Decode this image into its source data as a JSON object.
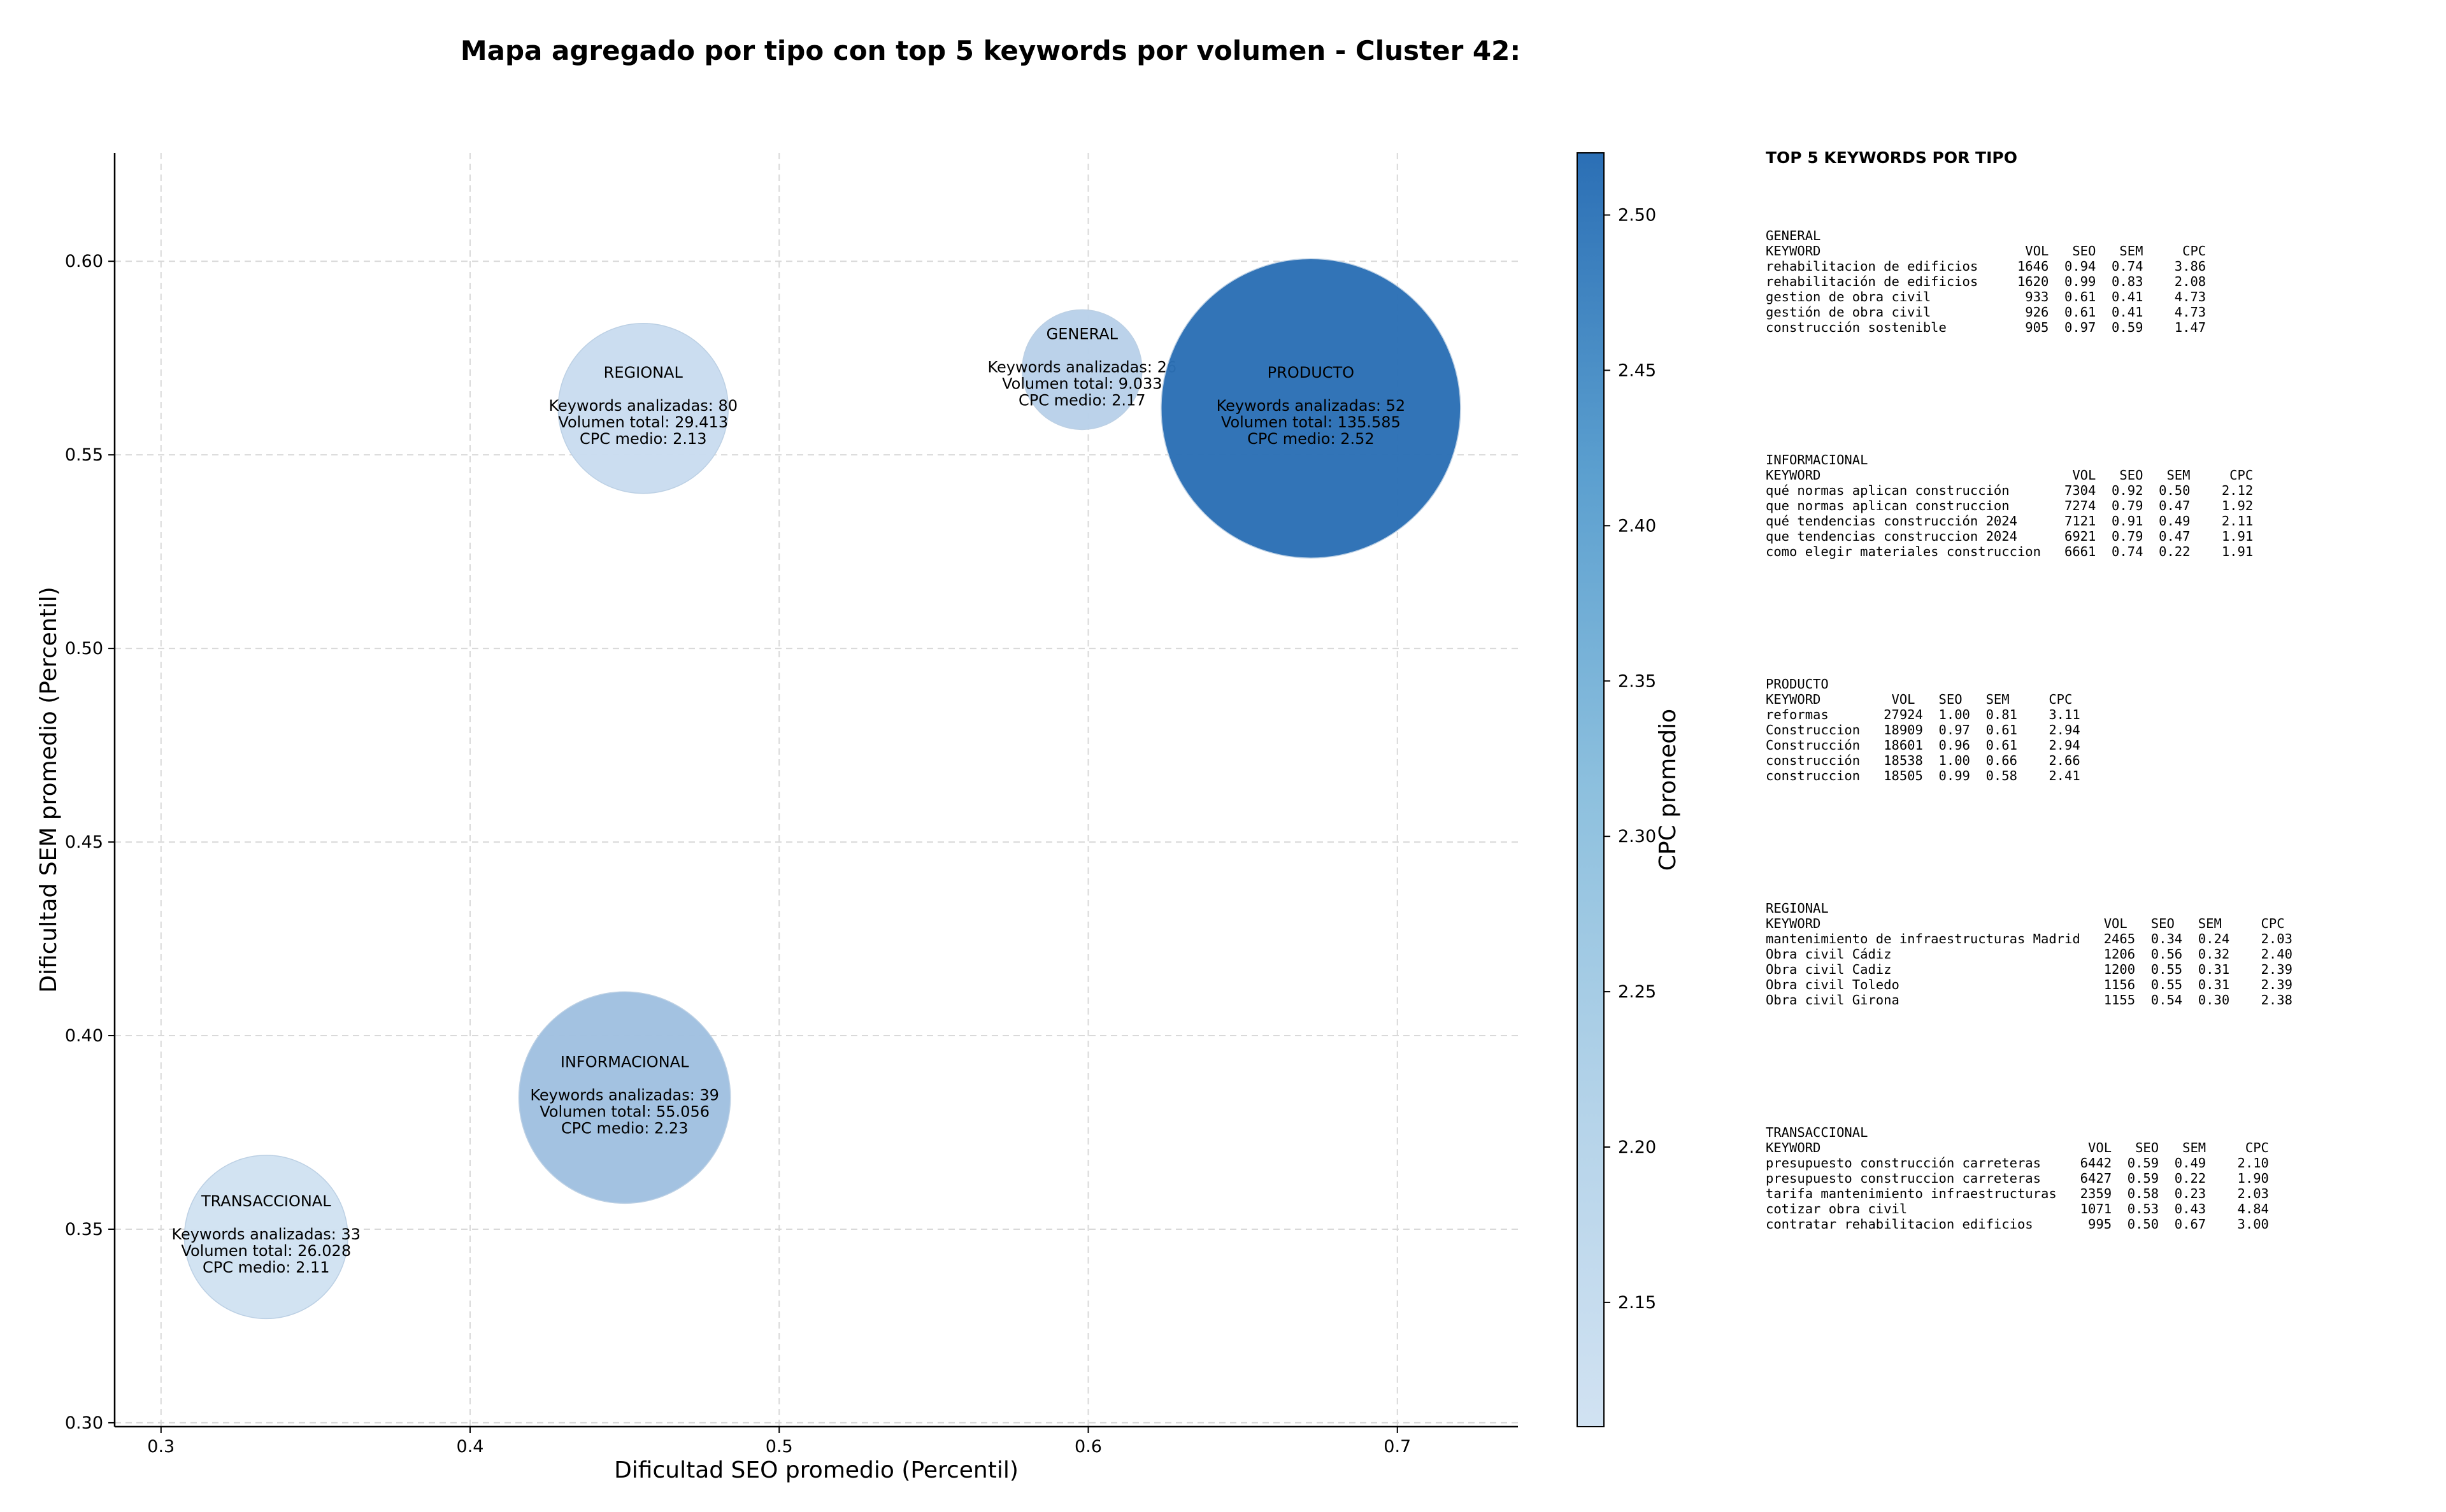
{
  "title": "Mapa agregado por tipo con top 5 keywords por volumen - Cluster 42:",
  "chart_data": {
    "type": "scatter",
    "title": "Mapa agregado por tipo con top 5 keywords por volumen - Cluster 42:",
    "xlabel": "Dificultad SEO promedio (Percentil)",
    "ylabel": "Dificultad SEM promedio (Percentil)",
    "xlim": [
      0.285,
      0.739
    ],
    "ylim": [
      0.299,
      0.628
    ],
    "xticks": [
      0.3,
      0.4,
      0.5,
      0.6,
      0.7
    ],
    "xtick_labels": [
      "0.3",
      "0.4",
      "0.5",
      "0.6",
      "0.7"
    ],
    "yticks": [
      0.3,
      0.35,
      0.4,
      0.45,
      0.5,
      0.55,
      0.6
    ],
    "ytick_labels": [
      "0.30",
      "0.35",
      "0.40",
      "0.45",
      "0.50",
      "0.55",
      "0.60"
    ],
    "grid": true,
    "size_encoding": "Volumen total",
    "colorbar": {
      "label": "CPC promedio",
      "range": [
        2.11,
        2.52
      ],
      "ticks": [
        2.15,
        2.2,
        2.25,
        2.3,
        2.35,
        2.4,
        2.45,
        2.5
      ],
      "tick_labels": [
        "2.15",
        "2.20",
        "2.25",
        "2.30",
        "2.35",
        "2.40",
        "2.45",
        "2.50"
      ],
      "color_low": "#d1e2f2",
      "color_high": "#2b6fb5"
    },
    "points": [
      {
        "name": "REGIONAL",
        "x": 0.456,
        "y": 0.562,
        "keywords": 80,
        "volume": 29413,
        "cpc": 2.13,
        "label": "REGIONAL",
        "line1": "Keywords analizadas: 80",
        "line2": "Volumen total: 29.413",
        "line3": "CPC medio: 2.13"
      },
      {
        "name": "GENERAL",
        "x": 0.598,
        "y": 0.572,
        "keywords": 26,
        "volume": 9033,
        "cpc": 2.17,
        "label": "GENERAL",
        "line1": "Keywords analizadas: 26",
        "line2": "Volumen total: 9.033",
        "line3": "CPC medio: 2.17"
      },
      {
        "name": "PRODUCTO",
        "x": 0.672,
        "y": 0.562,
        "keywords": 52,
        "volume": 135585,
        "cpc": 2.52,
        "label": "PRODUCTO",
        "line1": "Keywords analizadas: 52",
        "line2": "Volumen total: 135.585",
        "line3": "CPC medio: 2.52"
      },
      {
        "name": "INFORMACIONAL",
        "x": 0.45,
        "y": 0.384,
        "keywords": 39,
        "volume": 55056,
        "cpc": 2.23,
        "label": "INFORMACIONAL",
        "line1": "Keywords analizadas: 39",
        "line2": "Volumen total: 55.056",
        "line3": "CPC medio: 2.23"
      },
      {
        "name": "TRANSACCIONAL",
        "x": 0.334,
        "y": 0.348,
        "keywords": 33,
        "volume": 26028,
        "cpc": 2.11,
        "label": "TRANSACCIONAL",
        "line1": "Keywords analizadas: 33",
        "line2": "Volumen total: 26.028",
        "line3": "CPC medio: 2.11"
      }
    ]
  },
  "panel": {
    "title": "TOP 5 KEYWORDS POR TIPO",
    "groups": [
      {
        "name": "GENERAL",
        "lines": [
          "KEYWORD                          VOL   SEO   SEM     CPC",
          "rehabilitacion de edificios     1646  0.94  0.74    3.86",
          "rehabilitación de edificios     1620  0.99  0.83    2.08",
          "gestion de obra civil            933  0.61  0.41    4.73",
          "gestión de obra civil            926  0.61  0.41    4.73",
          "construcción sostenible          905  0.97  0.59    1.47"
        ]
      },
      {
        "name": "INFORMACIONAL",
        "lines": [
          "KEYWORD                                VOL   SEO   SEM     CPC",
          "qué normas aplican construcción       7304  0.92  0.50    2.12",
          "que normas aplican construccion       7274  0.79  0.47    1.92",
          "qué tendencias construcción 2024      7121  0.91  0.49    2.11",
          "que tendencias construccion 2024      6921  0.79  0.47    1.91",
          "como elegir materiales construccion   6661  0.74  0.22    1.91"
        ]
      },
      {
        "name": "PRODUCTO",
        "lines": [
          "KEYWORD         VOL   SEO   SEM     CPC",
          "reformas       27924  1.00  0.81    3.11",
          "Construccion   18909  0.97  0.61    2.94",
          "Construcción   18601  0.96  0.61    2.94",
          "construcción   18538  1.00  0.66    2.66",
          "construccion   18505  0.99  0.58    2.41"
        ]
      },
      {
        "name": "REGIONAL",
        "lines": [
          "KEYWORD                                    VOL   SEO   SEM     CPC",
          "mantenimiento de infraestructuras Madrid   2465  0.34  0.24    2.03",
          "Obra civil Cádiz                           1206  0.56  0.32    2.40",
          "Obra civil Cadiz                           1200  0.55  0.31    2.39",
          "Obra civil Toledo                          1156  0.55  0.31    2.39",
          "Obra civil Girona                          1155  0.54  0.30    2.38"
        ]
      },
      {
        "name": "TRANSACCIONAL",
        "lines": [
          "KEYWORD                                  VOL   SEO   SEM     CPC",
          "presupuesto construcción carreteras     6442  0.59  0.49    2.10",
          "presupuesto construccion carreteras     6427  0.59  0.22    1.90",
          "tarifa mantenimiento infraestructuras   2359  0.58  0.23    2.03",
          "cotizar obra civil                      1071  0.53  0.43    4.84",
          "contratar rehabilitacion edificios       995  0.50  0.67    3.00"
        ]
      }
    ]
  }
}
